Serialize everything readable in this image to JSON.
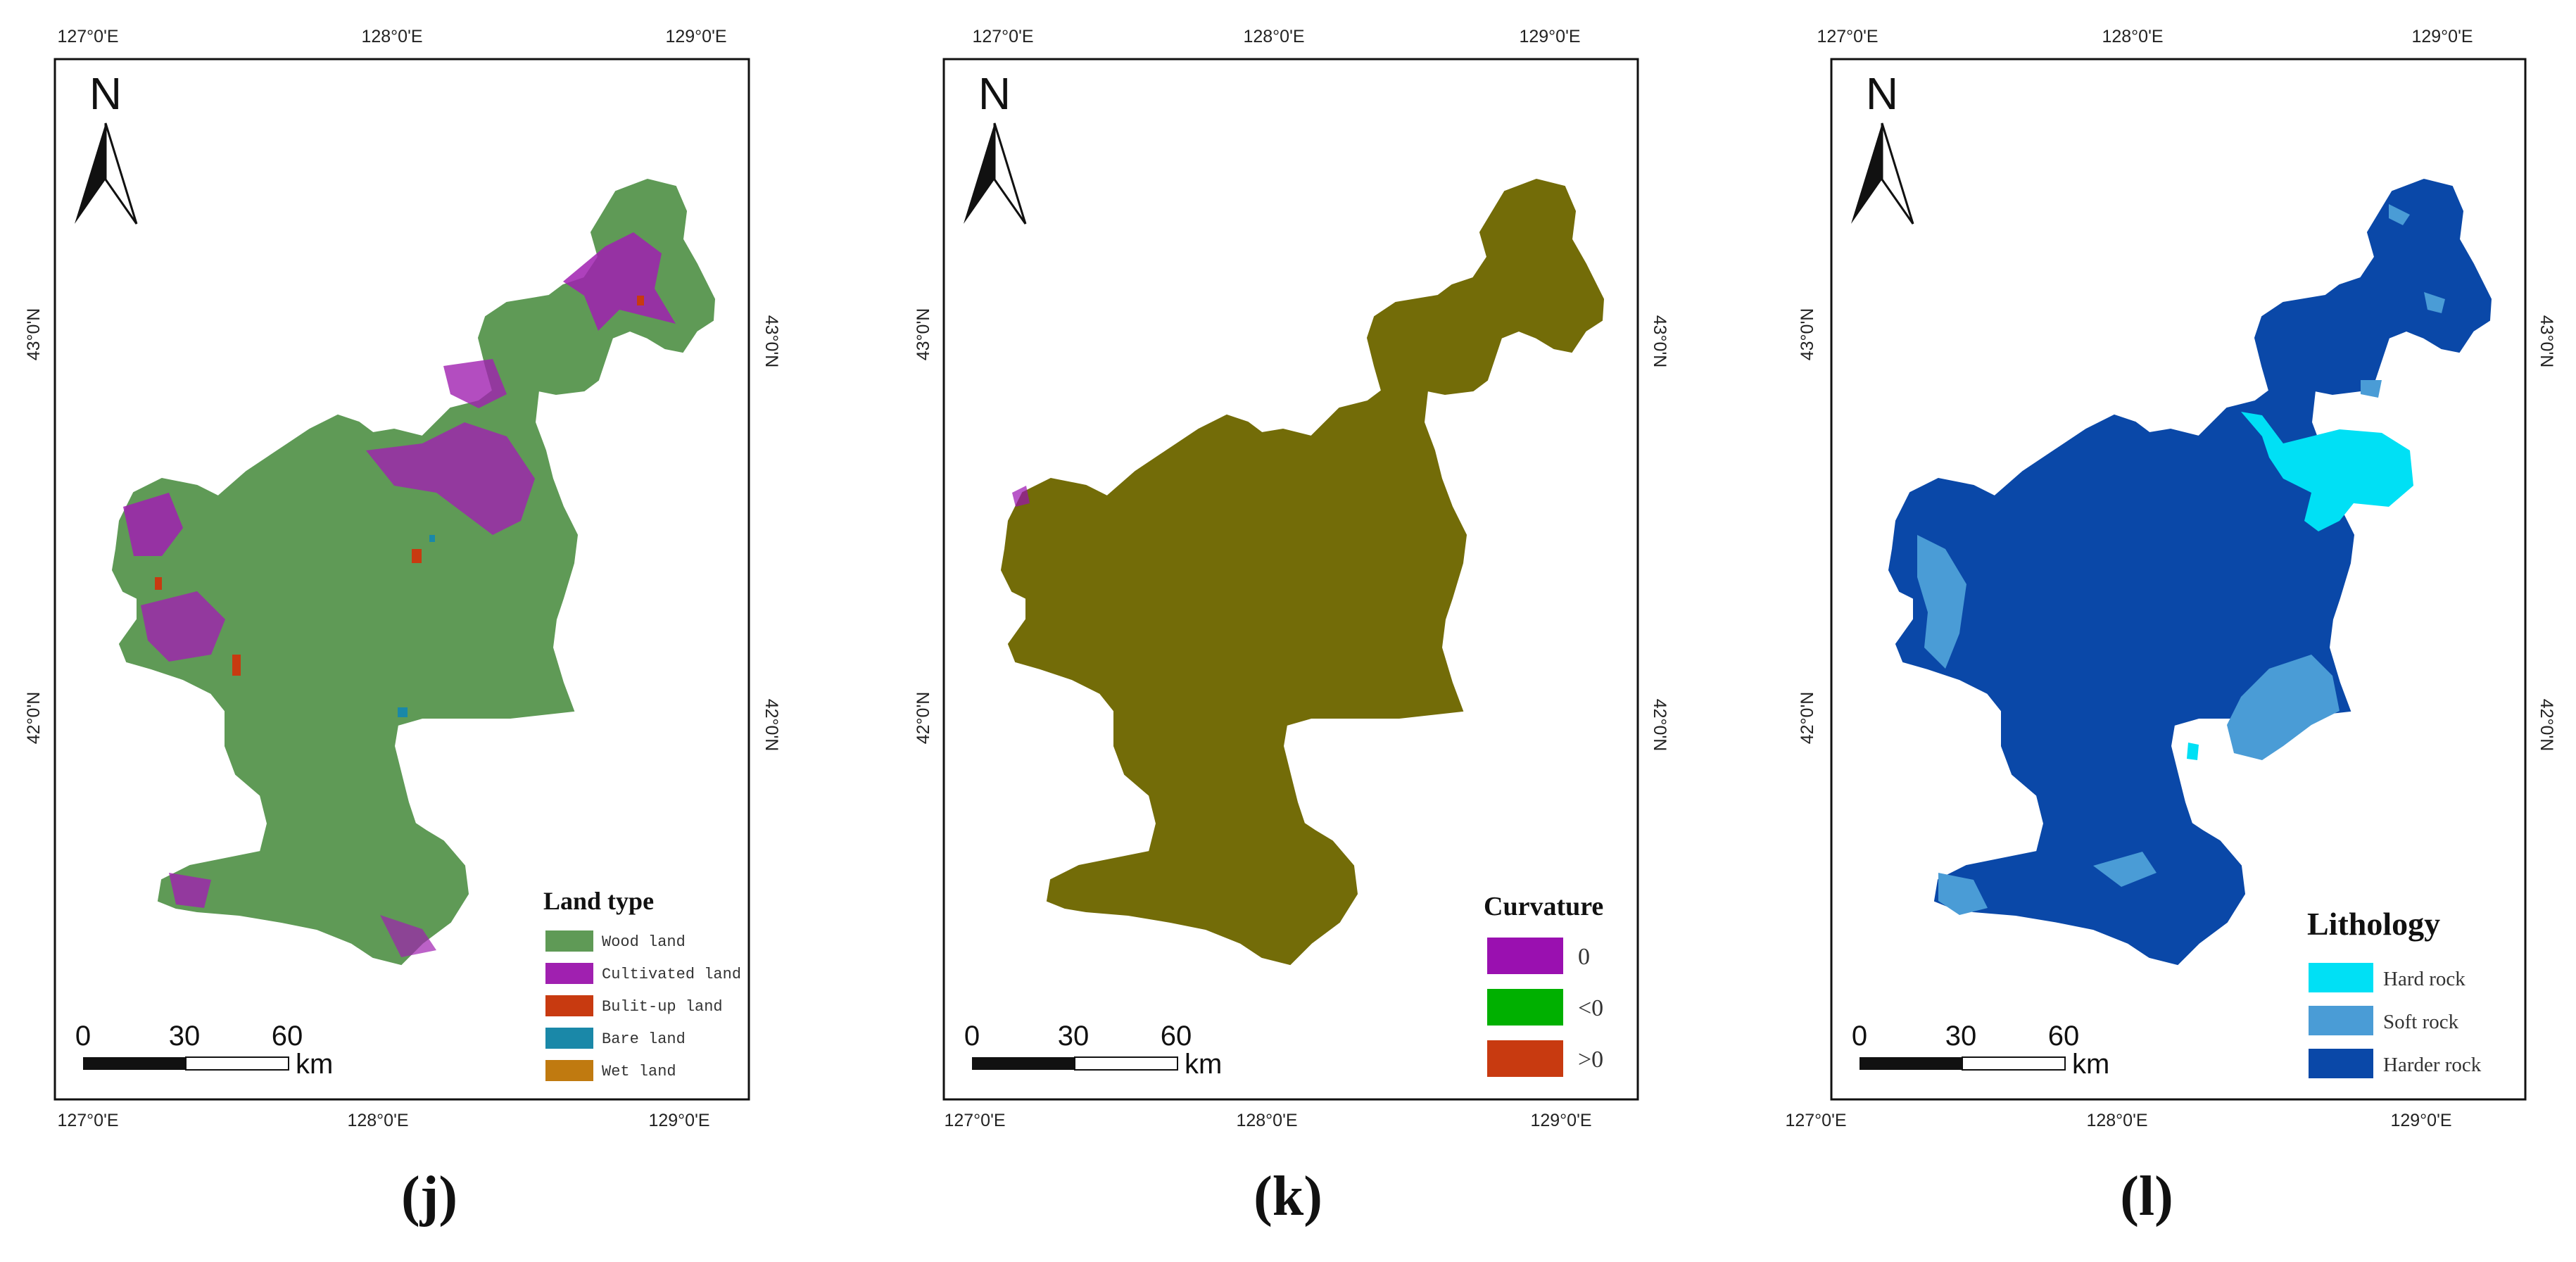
{
  "axes": {
    "lon_labels": [
      "127°0'E",
      "128°0'E",
      "129°0'E"
    ],
    "lat_labels": [
      "43°0'N",
      "42°0'N"
    ]
  },
  "north_arrow": {
    "label": "N"
  },
  "scale_bar": {
    "ticks": [
      "0",
      "30",
      "60"
    ],
    "unit": "km"
  },
  "panels": [
    {
      "caption": "(j)",
      "legend": {
        "title": "Land type",
        "items": [
          {
            "label": "Wood land",
            "color": "#5f9a56"
          },
          {
            "label": "Cultivated land",
            "color": "#a020b0"
          },
          {
            "label": "Bulit-up land",
            "color": "#c83a10"
          },
          {
            "label": "Bare land",
            "color": "#1a88a8"
          },
          {
            "label": "Wet land",
            "color": "#c07a10"
          }
        ]
      }
    },
    {
      "caption": "(k)",
      "legend": {
        "title": "Curvature",
        "items": [
          {
            "label": "0",
            "color": "#9a10b0"
          },
          {
            "label": "<0",
            "color": "#00b000"
          },
          {
            "label": ">0",
            "color": "#c83a10"
          }
        ]
      }
    },
    {
      "caption": "(l)",
      "legend": {
        "title": "Lithology",
        "items": [
          {
            "label": "Hard rock",
            "color": "#00e0f5"
          },
          {
            "label": "Soft rock",
            "color": "#4a9cd6"
          },
          {
            "label": "Harder rock",
            "color": "#0a48a8"
          }
        ]
      }
    }
  ],
  "colors": {
    "land_wood": "#5f9a56",
    "land_cultivated": "#a020b0",
    "curvature_fill": "#736c08",
    "litho_harder": "#0a48a8",
    "litho_soft": "#4a9cd6",
    "litho_hard": "#00e0f5"
  }
}
